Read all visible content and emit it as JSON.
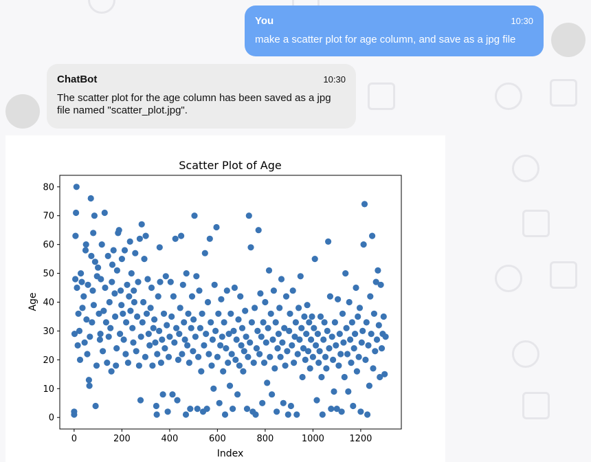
{
  "chat": {
    "user": {
      "name": "You",
      "time": "10:30",
      "text": "make a scatter plot for age column, and save as a jpg file"
    },
    "bot": {
      "name": "ChatBot",
      "time": "10:30",
      "text": "The scatter plot for the age column has been saved as a jpg file named \"scatter_plot.jpg\"."
    }
  },
  "colors": {
    "user_bubble": "#6aa5f5",
    "bot_bubble": "#ececec",
    "marker": "#3a74b4"
  },
  "chart_data": {
    "type": "scatter",
    "title": "Scatter Plot of Age",
    "xlabel": "Index",
    "ylabel": "Age",
    "xlim": [
      -60,
      1370
    ],
    "ylim": [
      -4,
      84
    ],
    "xticks": [
      0,
      200,
      400,
      600,
      800,
      1000,
      1200
    ],
    "yticks": [
      0,
      10,
      20,
      30,
      40,
      50,
      60,
      70,
      80
    ],
    "grid": false,
    "points": [
      [
        0,
        2
      ],
      [
        0,
        1
      ],
      [
        2,
        29
      ],
      [
        5,
        48
      ],
      [
        6,
        63
      ],
      [
        8,
        71
      ],
      [
        10,
        80
      ],
      [
        12,
        45
      ],
      [
        15,
        25
      ],
      [
        18,
        36
      ],
      [
        22,
        30
      ],
      [
        25,
        20
      ],
      [
        28,
        50
      ],
      [
        32,
        47
      ],
      [
        35,
        38
      ],
      [
        40,
        42
      ],
      [
        44,
        26
      ],
      [
        48,
        58
      ],
      [
        50,
        60
      ],
      [
        52,
        34
      ],
      [
        55,
        22
      ],
      [
        58,
        46
      ],
      [
        62,
        13
      ],
      [
        64,
        11
      ],
      [
        66,
        28
      ],
      [
        70,
        76
      ],
      [
        72,
        56
      ],
      [
        75,
        33
      ],
      [
        78,
        44
      ],
      [
        80,
        64
      ],
      [
        82,
        39
      ],
      [
        85,
        70
      ],
      [
        88,
        54
      ],
      [
        90,
        4
      ],
      [
        94,
        18
      ],
      [
        96,
        49
      ],
      [
        100,
        52
      ],
      [
        104,
        36
      ],
      [
        108,
        27
      ],
      [
        110,
        29
      ],
      [
        112,
        48
      ],
      [
        116,
        60
      ],
      [
        120,
        23
      ],
      [
        124,
        37
      ],
      [
        128,
        71
      ],
      [
        130,
        45
      ],
      [
        134,
        33
      ],
      [
        138,
        19
      ],
      [
        142,
        56
      ],
      [
        145,
        28
      ],
      [
        148,
        40
      ],
      [
        152,
        31
      ],
      [
        156,
        16
      ],
      [
        158,
        47
      ],
      [
        160,
        53
      ],
      [
        165,
        58
      ],
      [
        170,
        43
      ],
      [
        172,
        35
      ],
      [
        175,
        18
      ],
      [
        178,
        24
      ],
      [
        180,
        51
      ],
      [
        184,
        64
      ],
      [
        188,
        65
      ],
      [
        192,
        29
      ],
      [
        195,
        44
      ],
      [
        198,
        39
      ],
      [
        200,
        55
      ],
      [
        204,
        36
      ],
      [
        208,
        27
      ],
      [
        212,
        58
      ],
      [
        216,
        22
      ],
      [
        218,
        33
      ],
      [
        222,
        46
      ],
      [
        226,
        19
      ],
      [
        230,
        42
      ],
      [
        234,
        61
      ],
      [
        236,
        37
      ],
      [
        240,
        50
      ],
      [
        244,
        31
      ],
      [
        248,
        26
      ],
      [
        250,
        44
      ],
      [
        252,
        40
      ],
      [
        256,
        57
      ],
      [
        260,
        23
      ],
      [
        264,
        35
      ],
      [
        268,
        47
      ],
      [
        272,
        18
      ],
      [
        275,
        62
      ],
      [
        278,
        6
      ],
      [
        280,
        28
      ],
      [
        283,
        67
      ],
      [
        286,
        33
      ],
      [
        290,
        40
      ],
      [
        294,
        55
      ],
      [
        298,
        21
      ],
      [
        300,
        63
      ],
      [
        304,
        36
      ],
      [
        308,
        48
      ],
      [
        312,
        29
      ],
      [
        316,
        25
      ],
      [
        320,
        38
      ],
      [
        324,
        45
      ],
      [
        328,
        18
      ],
      [
        332,
        31
      ],
      [
        336,
        34
      ],
      [
        340,
        26
      ],
      [
        344,
        4
      ],
      [
        346,
        1
      ],
      [
        348,
        22
      ],
      [
        352,
        42
      ],
      [
        356,
        30
      ],
      [
        358,
        59
      ],
      [
        360,
        47
      ],
      [
        364,
        19
      ],
      [
        368,
        27
      ],
      [
        372,
        8
      ],
      [
        376,
        36
      ],
      [
        380,
        24
      ],
      [
        384,
        49
      ],
      [
        388,
        32
      ],
      [
        392,
        2
      ],
      [
        396,
        21
      ],
      [
        400,
        28
      ],
      [
        404,
        47
      ],
      [
        408,
        35
      ],
      [
        412,
        8
      ],
      [
        416,
        42
      ],
      [
        420,
        26
      ],
      [
        424,
        62
      ],
      [
        428,
        31
      ],
      [
        432,
        6
      ],
      [
        436,
        20
      ],
      [
        440,
        29
      ],
      [
        444,
        38
      ],
      [
        448,
        63
      ],
      [
        452,
        22
      ],
      [
        456,
        46
      ],
      [
        460,
        33
      ],
      [
        464,
        27
      ],
      [
        468,
        1
      ],
      [
        470,
        50
      ],
      [
        474,
        25
      ],
      [
        478,
        36
      ],
      [
        482,
        19
      ],
      [
        486,
        3
      ],
      [
        490,
        31
      ],
      [
        494,
        42
      ],
      [
        498,
        23
      ],
      [
        500,
        34
      ],
      [
        504,
        70
      ],
      [
        508,
        28
      ],
      [
        512,
        49
      ],
      [
        516,
        3
      ],
      [
        520,
        21
      ],
      [
        524,
        44
      ],
      [
        528,
        31
      ],
      [
        532,
        16
      ],
      [
        536,
        36
      ],
      [
        540,
        2
      ],
      [
        544,
        25
      ],
      [
        548,
        57
      ],
      [
        552,
        29
      ],
      [
        556,
        3
      ],
      [
        560,
        40
      ],
      [
        564,
        22
      ],
      [
        568,
        62
      ],
      [
        572,
        33
      ],
      [
        576,
        18
      ],
      [
        580,
        27
      ],
      [
        584,
        10
      ],
      [
        588,
        46
      ],
      [
        592,
        30
      ],
      [
        596,
        66
      ],
      [
        600,
        21
      ],
      [
        604,
        36
      ],
      [
        608,
        5
      ],
      [
        612,
        25
      ],
      [
        616,
        41
      ],
      [
        620,
        28
      ],
      [
        624,
        16
      ],
      [
        628,
        33
      ],
      [
        632,
        1
      ],
      [
        636,
        24
      ],
      [
        640,
        44
      ],
      [
        644,
        19
      ],
      [
        648,
        29
      ],
      [
        652,
        11
      ],
      [
        656,
        36
      ],
      [
        660,
        22
      ],
      [
        664,
        3
      ],
      [
        668,
        30
      ],
      [
        672,
        45
      ],
      [
        676,
        20
      ],
      [
        680,
        27
      ],
      [
        684,
        8
      ],
      [
        688,
        34
      ],
      [
        692,
        18
      ],
      [
        696,
        42
      ],
      [
        700,
        25
      ],
      [
        704,
        31
      ],
      [
        708,
        16
      ],
      [
        712,
        23
      ],
      [
        716,
        37
      ],
      [
        720,
        28
      ],
      [
        724,
        3
      ],
      [
        728,
        21
      ],
      [
        732,
        70
      ],
      [
        736,
        26
      ],
      [
        740,
        59
      ],
      [
        744,
        33
      ],
      [
        748,
        2
      ],
      [
        752,
        19
      ],
      [
        756,
        38
      ],
      [
        760,
        1
      ],
      [
        764,
        24
      ],
      [
        768,
        30
      ],
      [
        772,
        65
      ],
      [
        776,
        22
      ],
      [
        780,
        43
      ],
      [
        784,
        28
      ],
      [
        788,
        5
      ],
      [
        792,
        33
      ],
      [
        796,
        19
      ],
      [
        800,
        40
      ],
      [
        804,
        26
      ],
      [
        808,
        12
      ],
      [
        812,
        31
      ],
      [
        816,
        51
      ],
      [
        820,
        21
      ],
      [
        824,
        36
      ],
      [
        828,
        8
      ],
      [
        832,
        27
      ],
      [
        836,
        44
      ],
      [
        840,
        17
      ],
      [
        844,
        33
      ],
      [
        848,
        2
      ],
      [
        852,
        24
      ],
      [
        856,
        29
      ],
      [
        860,
        38
      ],
      [
        864,
        21
      ],
      [
        868,
        48
      ],
      [
        872,
        26
      ],
      [
        876,
        5
      ],
      [
        880,
        31
      ],
      [
        884,
        18
      ],
      [
        888,
        42
      ],
      [
        892,
        23
      ],
      [
        896,
        1
      ],
      [
        900,
        30
      ],
      [
        904,
        36
      ],
      [
        908,
        4
      ],
      [
        912,
        25
      ],
      [
        916,
        44
      ],
      [
        920,
        19
      ],
      [
        924,
        28
      ],
      [
        928,
        33
      ],
      [
        932,
        1
      ],
      [
        936,
        22
      ],
      [
        940,
        38
      ],
      [
        944,
        27
      ],
      [
        948,
        49
      ],
      [
        952,
        31
      ],
      [
        956,
        14
      ],
      [
        960,
        24
      ],
      [
        964,
        35
      ],
      [
        968,
        20
      ],
      [
        972,
        29
      ],
      [
        976,
        39
      ],
      [
        980,
        23
      ],
      [
        984,
        33
      ],
      [
        988,
        17
      ],
      [
        992,
        27
      ],
      [
        996,
        35
      ],
      [
        1000,
        21
      ],
      [
        1004,
        31
      ],
      [
        1008,
        55
      ],
      [
        1012,
        25
      ],
      [
        1016,
        6
      ],
      [
        1020,
        29
      ],
      [
        1024,
        19
      ],
      [
        1028,
        23
      ],
      [
        1032,
        35
      ],
      [
        1036,
        14
      ],
      [
        1040,
        1
      ],
      [
        1044,
        27
      ],
      [
        1048,
        33
      ],
      [
        1052,
        21
      ],
      [
        1056,
        17
      ],
      [
        1060,
        30
      ],
      [
        1064,
        61
      ],
      [
        1068,
        24
      ],
      [
        1072,
        42
      ],
      [
        1076,
        3
      ],
      [
        1080,
        28
      ],
      [
        1084,
        20
      ],
      [
        1088,
        9
      ],
      [
        1092,
        33
      ],
      [
        1096,
        25
      ],
      [
        1100,
        3
      ],
      [
        1104,
        41
      ],
      [
        1108,
        18
      ],
      [
        1112,
        29
      ],
      [
        1116,
        22
      ],
      [
        1120,
        2
      ],
      [
        1124,
        36
      ],
      [
        1128,
        26
      ],
      [
        1132,
        14
      ],
      [
        1136,
        50
      ],
      [
        1140,
        31
      ],
      [
        1144,
        22
      ],
      [
        1148,
        9
      ],
      [
        1152,
        40
      ],
      [
        1156,
        27
      ],
      [
        1160,
        19
      ],
      [
        1164,
        33
      ],
      [
        1168,
        4
      ],
      [
        1172,
        24
      ],
      [
        1176,
        29
      ],
      [
        1180,
        45
      ],
      [
        1184,
        16
      ],
      [
        1188,
        35
      ],
      [
        1192,
        21
      ],
      [
        1196,
        38
      ],
      [
        1200,
        2
      ],
      [
        1204,
        26
      ],
      [
        1208,
        30
      ],
      [
        1212,
        60
      ],
      [
        1216,
        74
      ],
      [
        1220,
        20
      ],
      [
        1224,
        33
      ],
      [
        1228,
        1
      ],
      [
        1232,
        25
      ],
      [
        1236,
        11
      ],
      [
        1240,
        42
      ],
      [
        1244,
        29
      ],
      [
        1248,
        63
      ],
      [
        1252,
        17
      ],
      [
        1256,
        36
      ],
      [
        1260,
        23
      ],
      [
        1264,
        47
      ],
      [
        1268,
        27
      ],
      [
        1272,
        51
      ],
      [
        1276,
        32
      ],
      [
        1280,
        14
      ],
      [
        1284,
        46
      ],
      [
        1288,
        24
      ],
      [
        1292,
        29
      ],
      [
        1296,
        35
      ],
      [
        1300,
        15
      ],
      [
        1304,
        28
      ]
    ]
  }
}
